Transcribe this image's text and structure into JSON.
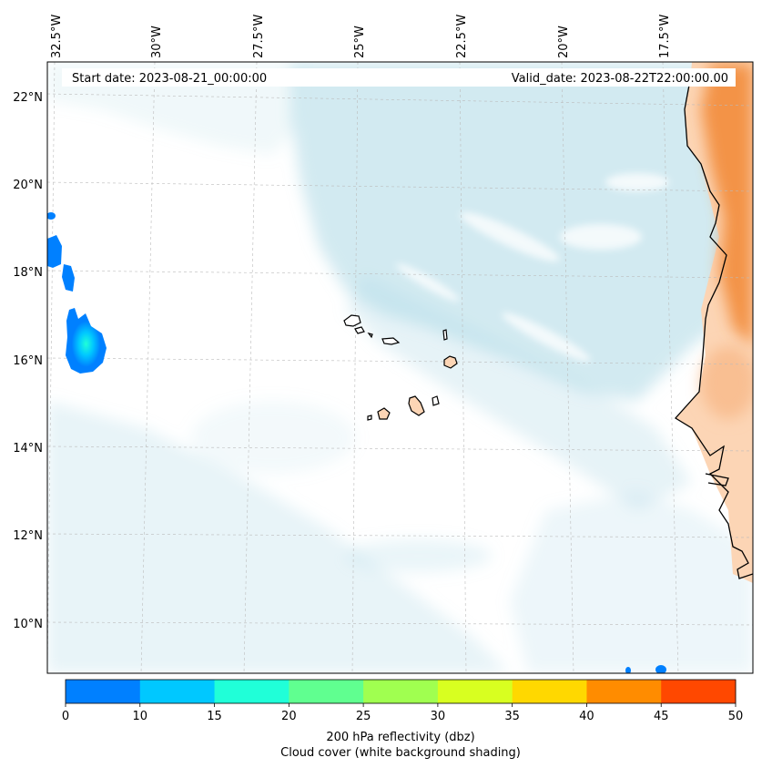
{
  "map": {
    "start_date_label": "Start date: 2023-08-21_00:00:00",
    "valid_date_label": "Valid_date: 2023-08-22T22:00:00.00",
    "lon_labels": [
      "32.5°W",
      "30°W",
      "27.5°W",
      "25°W",
      "22.5°W",
      "20°W",
      "17.5°W"
    ],
    "lat_labels": [
      "22°N",
      "20°N",
      "18°N",
      "16°N",
      "14°N",
      "12°N",
      "10°N"
    ],
    "gridlines": true,
    "cloud_color": "#add8e6",
    "land_fill_color": "#fcd5b5",
    "land_hot_color": "#f28c3a",
    "coastline_color": "#000000"
  },
  "colorbar": {
    "ticks": [
      "0",
      "10",
      "15",
      "20",
      "25",
      "30",
      "35",
      "40",
      "45",
      "50"
    ],
    "colors": [
      "#0080ff",
      "#00c8ff",
      "#20ffd8",
      "#60ff90",
      "#a0ff50",
      "#d8ff20",
      "#ffd800",
      "#ff8c00",
      "#ff4800"
    ],
    "label_line1": "200 hPa reflectivity (dbz)",
    "label_line2": "Cloud cover (white background shading)"
  }
}
